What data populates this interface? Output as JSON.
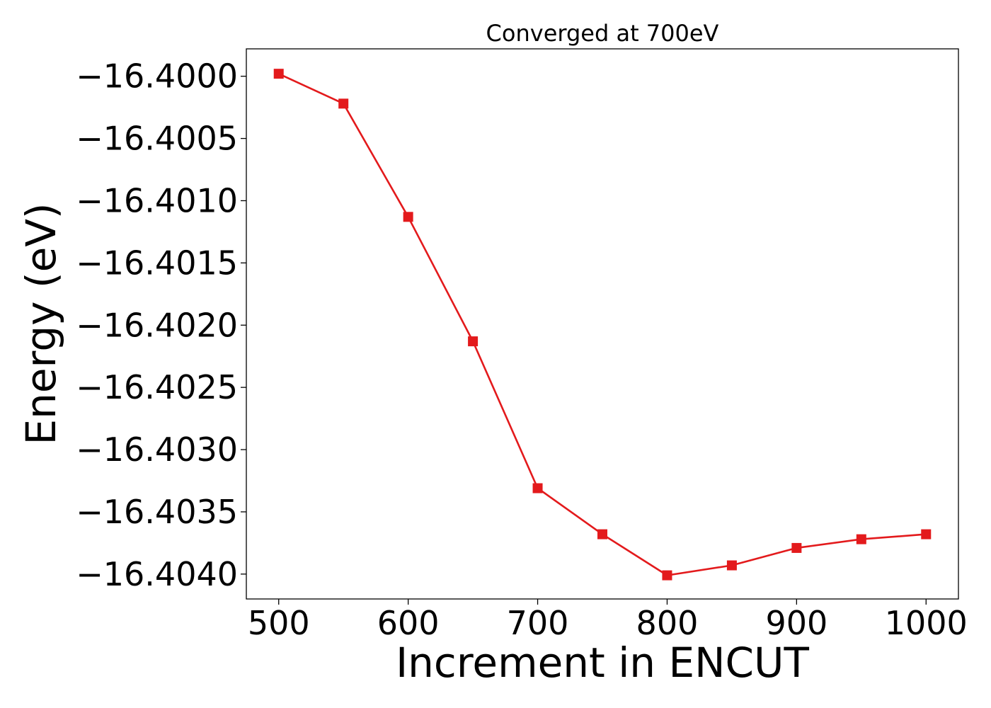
{
  "chart_data": {
    "type": "line",
    "title": "Converged at 700eV",
    "xlabel": "Increment in ENCUT",
    "ylabel": "Energy (eV)",
    "x": [
      500,
      550,
      600,
      650,
      700,
      750,
      800,
      850,
      900,
      950,
      1000
    ],
    "series": [
      {
        "values": [
          -16.39998,
          -16.40022,
          -16.40113,
          -16.40213,
          -16.40331,
          -16.40368,
          -16.40401,
          -16.40393,
          -16.40379,
          -16.40372,
          -16.40368
        ],
        "color": "#e31a1c",
        "marker": "square"
      }
    ],
    "xlim": [
      475,
      1025
    ],
    "ylim": [
      -16.4042,
      -16.39978
    ],
    "xticks": [
      500,
      600,
      700,
      800,
      900,
      1000
    ],
    "xtick_labels": [
      "500",
      "600",
      "700",
      "800",
      "900",
      "1000"
    ],
    "yticks": [
      -16.4,
      -16.4005,
      -16.401,
      -16.4015,
      -16.402,
      -16.4025,
      -16.403,
      -16.4035,
      -16.404
    ],
    "ytick_labels": [
      "−16.4000",
      "−16.4005",
      "−16.4010",
      "−16.4015",
      "−16.4020",
      "−16.4025",
      "−16.4030",
      "−16.4035",
      "−16.4040"
    ],
    "grid": false,
    "legend": false
  }
}
